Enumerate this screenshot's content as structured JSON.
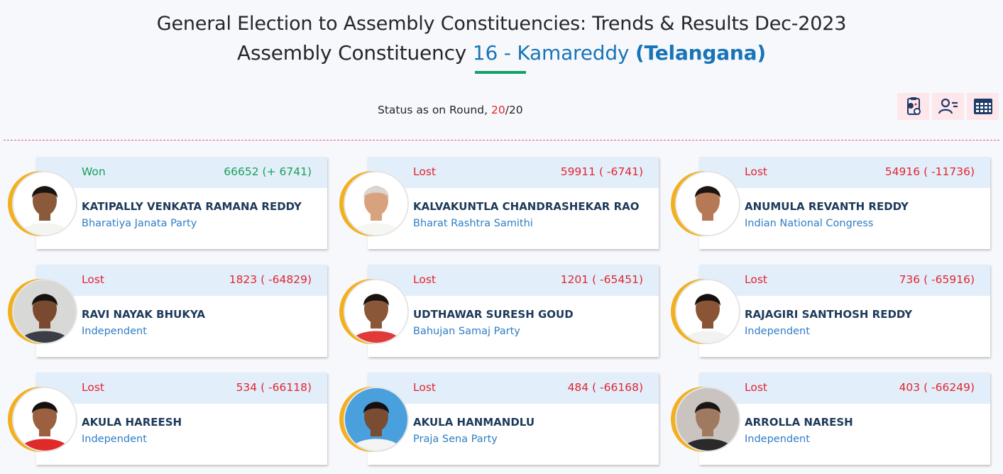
{
  "header": {
    "title": "General Election to Assembly Constituencies: Trends & Results Dec-2023",
    "ac_prefix": "Assembly Constituency",
    "ac_name": "16 - Kamareddy",
    "state": "(Telangana)"
  },
  "status": {
    "label": "Status as on Round,",
    "current_round": "20",
    "total_rounds": "/20"
  },
  "toolbar": {
    "icons": [
      "candidate-report-icon",
      "user-list-icon",
      "table-grid-icon"
    ]
  },
  "colors": {
    "won": "#17a055",
    "lost": "#e0262e",
    "accent": "#1874b8",
    "ring": "#f2b01e"
  },
  "candidates": [
    {
      "status": "Won",
      "votes": "66652 (+ 6741)",
      "name": "KATIPALLY VENKATA RAMANA REDDY",
      "party": "Bharatiya Janata Party",
      "skin": "#8a5a3a",
      "hair": "#1a1410",
      "shirt": "#f4f4f0",
      "bg": "#ffffff"
    },
    {
      "status": "Lost",
      "votes": "59911 ( -6741)",
      "name": "KALVAKUNTLA CHANDRASHEKAR RAO",
      "party": "Bharat Rashtra Samithi",
      "skin": "#d9a27e",
      "hair": "#d9d6d0",
      "shirt": "#f6f6f2",
      "bg": "#ffffff"
    },
    {
      "status": "Lost",
      "votes": "54916 ( -11736)",
      "name": "ANUMULA REVANTH REDDY",
      "party": "Indian National Congress",
      "skin": "#b57a55",
      "hair": "#1b1512",
      "shirt": "#ffffff",
      "bg": "#ffffff"
    },
    {
      "status": "Lost",
      "votes": "1823 ( -64829)",
      "name": "RAVI NAYAK BHUKYA",
      "party": "Independent",
      "skin": "#7a4a30",
      "hair": "#161210",
      "shirt": "#3b3f45",
      "bg": "#d8d9d6"
    },
    {
      "status": "Lost",
      "votes": "1201 ( -65451)",
      "name": "UDTHAWAR SURESH GOUD",
      "party": "Bahujan Samaj Party",
      "skin": "#8a5838",
      "hair": "#1a1410",
      "shirt": "#e03a3a",
      "bg": "#ffffff"
    },
    {
      "status": "Lost",
      "votes": "736 ( -65916)",
      "name": "RAJAGIRI SANTHOSH REDDY",
      "party": "Independent",
      "skin": "#8a5535",
      "hair": "#141010",
      "shirt": "#f2f2f2",
      "bg": "#ffffff"
    },
    {
      "status": "Lost",
      "votes": "534 ( -66118)",
      "name": "AKULA HAREESH",
      "party": "Independent",
      "skin": "#9a6040",
      "hair": "#151110",
      "shirt": "#e02a2a",
      "bg": "#ffffff"
    },
    {
      "status": "Lost",
      "votes": "484 ( -66168)",
      "name": "AKULA HANMANDLU",
      "party": "Praja Sena Party",
      "skin": "#7a4c32",
      "hair": "#141010",
      "shirt": "#f4f4f4",
      "bg": "#4aa0dc"
    },
    {
      "status": "Lost",
      "votes": "403 ( -66249)",
      "name": "ARROLLA NARESH",
      "party": "Independent",
      "skin": "#a07a60",
      "hair": "#1a1614",
      "shirt": "#2a2a2a",
      "bg": "#c9c4bf"
    }
  ]
}
